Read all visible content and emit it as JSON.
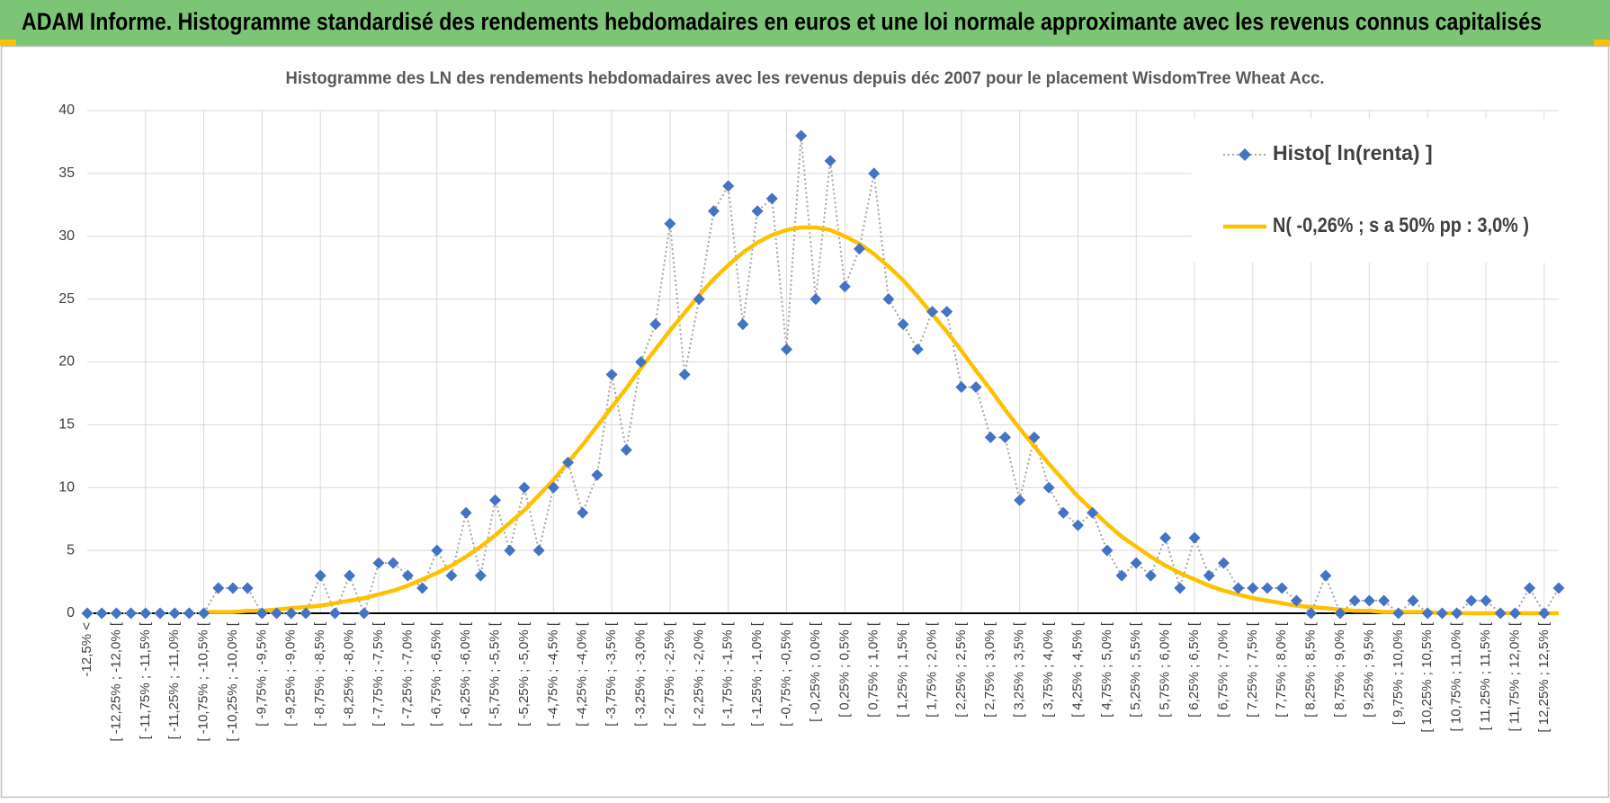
{
  "header": {
    "title": "ADAM Informe. Histogramme standardisé des rendements hebdomadaires en euros et une loi normale approximante avec les revenus connus capitalisés"
  },
  "chart_data": {
    "type": "line",
    "title": "Histogramme  des LN des rendements hebdomadaires avec les revenus depuis déc 2007 pour le placement WisdomTree  Wheat Acc.",
    "categories": [
      "-12,5% <",
      null,
      "[ -12,25% ; -12,0% [",
      null,
      "[ -11,75% ; -11,5% [",
      null,
      "[ -11,25% ; -11,0% [",
      null,
      "[ -10,75% ; -10,5% [",
      null,
      "[ -10,25% ; -10,0% [",
      null,
      "[ -9,75% ; -9,5% [",
      null,
      "[ -9,25% ; -9,0% [",
      null,
      "[ -8,75% ; -8,5% [",
      null,
      "[ -8,25% ; -8,0% [",
      null,
      "[ -7,75% ; -7,5% [",
      null,
      "[ -7,25% ; -7,0% [",
      null,
      "[ -6,75% ; -6,5% [",
      null,
      "[ -6,25% ; -6,0% [",
      null,
      "[ -5,75% ; -5,5% [",
      null,
      "[ -5,25% ; -5,0% [",
      null,
      "[ -4,75% ; -4,5% [",
      null,
      "[ -4,25% ; -4,0% [",
      null,
      "[ -3,75% ; -3,5% [",
      null,
      "[ -3,25% ; -3,0% [",
      null,
      "[ -2,75% ; -2,5% [",
      null,
      "[ -2,25% ; -2,0% [",
      null,
      "[ -1,75% ; -1,5% [",
      null,
      "[ -1,25% ; -1,0% [",
      null,
      "[ -0,75% ; -0,5% [",
      null,
      "[ -0,25% ; 0,0% [",
      null,
      "[ 0,25% ; 0,5% [",
      null,
      "[ 0,75% ; 1,0% [",
      null,
      "[ 1,25% ; 1,5% [",
      null,
      "[ 1,75% ; 2,0% [",
      null,
      "[ 2,25% ; 2,5% [",
      null,
      "[ 2,75% ; 3,0% [",
      null,
      "[ 3,25% ; 3,5% [",
      null,
      "[ 3,75% ; 4,0% [",
      null,
      "[ 4,25% ; 4,5% [",
      null,
      "[ 4,75% ; 5,0% [",
      null,
      "[ 5,25% ; 5,5% [",
      null,
      "[ 5,75% ; 6,0% [",
      null,
      "[ 6,25% ; 6,5% [",
      null,
      "[ 6,75% ; 7,0% [",
      null,
      "[ 7,25% ; 7,5% [",
      null,
      "[ 7,75% ; 8,0% [",
      null,
      "[ 8,25% ; 8,5% [",
      null,
      "[ 8,75% ; 9,0% [",
      null,
      "[ 9,25% ; 9,5% [",
      null,
      "[ 9,75% ; 10,0% [",
      null,
      "[ 10,25% ; 10,5% [",
      null,
      "[ 10,75% ; 11,0% [",
      null,
      "[ 11,25% ; 11,5% [",
      null,
      "[ 11,75% ; 12,0% [",
      null,
      "[ 12,25% ; 12,5% [",
      null
    ],
    "series": [
      {
        "name": "Histo[ ln(renta) ]",
        "color": "#4472c4",
        "line_color": "#a5a5a5",
        "values": [
          0,
          0,
          0,
          0,
          0,
          0,
          0,
          0,
          0,
          2,
          2,
          2,
          0,
          0,
          0,
          0,
          3,
          0,
          3,
          0,
          4,
          4,
          3,
          2,
          5,
          3,
          8,
          3,
          9,
          5,
          10,
          5,
          10,
          12,
          8,
          11,
          19,
          13,
          20,
          23,
          31,
          19,
          25,
          32,
          34,
          23,
          32,
          33,
          21,
          38,
          25,
          36,
          26,
          29,
          35,
          25,
          23,
          21,
          24,
          24,
          18,
          18,
          14,
          14,
          9,
          14,
          10,
          8,
          7,
          8,
          5,
          3,
          4,
          3,
          6,
          2,
          6,
          3,
          4,
          2,
          2,
          2,
          2,
          1,
          0,
          3,
          0,
          1,
          1,
          1,
          0,
          1,
          0,
          0,
          0,
          1,
          1,
          0,
          0,
          2,
          0,
          2
        ]
      },
      {
        "name": "N( -0,26% ; s a 50% pp : 3,0% )",
        "color": "#ffc000",
        "values": [
          null,
          null,
          null,
          null,
          null,
          null,
          null,
          null,
          0.1,
          0.1,
          0.1,
          0.2,
          0.2,
          0.3,
          0.4,
          0.5,
          0.6,
          0.8,
          1.0,
          1.2,
          1.5,
          1.8,
          2.2,
          2.7,
          3.2,
          3.8,
          4.5,
          5.3,
          6.2,
          7.2,
          8.2,
          9.4,
          10.6,
          12.0,
          13.4,
          14.9,
          16.4,
          17.9,
          19.5,
          21.0,
          22.5,
          23.9,
          25.3,
          26.6,
          27.7,
          28.7,
          29.5,
          30.1,
          30.5,
          30.7,
          30.7,
          30.5,
          30.0,
          29.4,
          28.6,
          27.6,
          26.5,
          25.2,
          23.8,
          22.4,
          20.9,
          19.3,
          17.8,
          16.2,
          14.7,
          13.3,
          11.9,
          10.6,
          9.3,
          8.2,
          7.1,
          6.1,
          5.3,
          4.5,
          3.8,
          3.2,
          2.7,
          2.2,
          1.8,
          1.5,
          1.2,
          1.0,
          0.8,
          0.6,
          0.5,
          0.4,
          0.3,
          0.2,
          0.2,
          0.1,
          0.1,
          0.1,
          0.1,
          0,
          0,
          0,
          0,
          0,
          0,
          0,
          0,
          0
        ]
      }
    ],
    "ylim": [
      0,
      40
    ],
    "yticks": [
      0,
      5,
      10,
      15,
      20,
      25,
      30,
      35,
      40
    ],
    "grid": true,
    "legend": "upper right"
  }
}
